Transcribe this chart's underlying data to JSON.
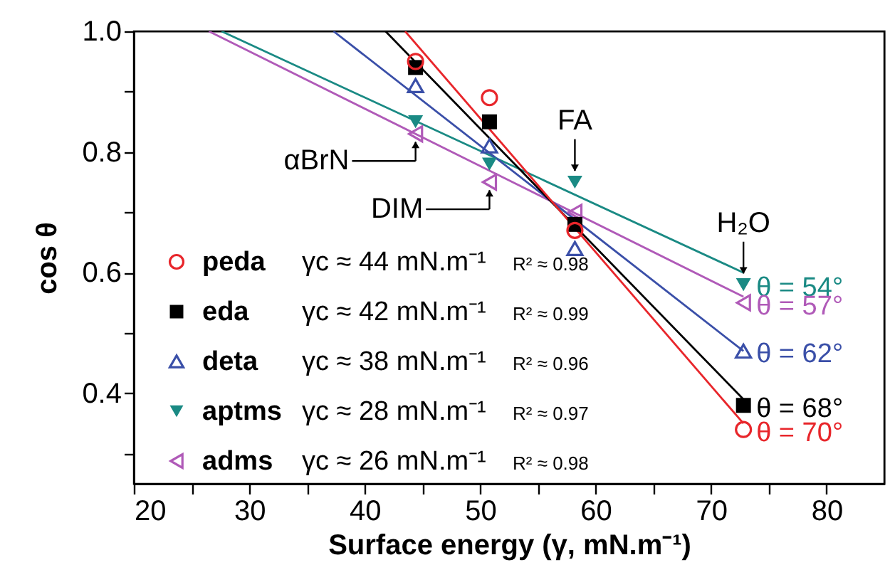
{
  "chart_data": {
    "type": "scatter",
    "xlabel": "Surface energy (γ, mN.m⁻¹)",
    "ylabel": "cos θ",
    "xlim": [
      20,
      85
    ],
    "ylim": [
      0.25,
      1.0
    ],
    "xticks": [
      20,
      {
        "value": 25,
        "label": null
      },
      30,
      {
        "value": 35,
        "label": null
      },
      40,
      {
        "value": 45,
        "label": null
      },
      50,
      {
        "value": 55,
        "label": null
      },
      60,
      {
        "value": 65,
        "label": null
      },
      70,
      {
        "value": 75,
        "label": null
      },
      80
    ],
    "yticks": [
      {
        "value": 0.3,
        "label": null
      },
      {
        "value": 0.4,
        "label": "0.4"
      },
      {
        "value": 0.5,
        "label": null
      },
      {
        "value": 0.6,
        "label": "0.6"
      },
      {
        "value": 0.7,
        "label": null
      },
      {
        "value": 0.8,
        "label": "0.8"
      },
      {
        "value": 0.9,
        "label": null
      },
      {
        "value": 1.0,
        "label": "1.0"
      }
    ],
    "grid": false,
    "legend": "bottom left",
    "annotations": [
      {
        "text": "αBrN",
        "x": 44.4,
        "y": 0.83
      },
      {
        "text": "DIM",
        "x": 50.8,
        "y": 0.75
      },
      {
        "text": "FA",
        "x": 58.2,
        "y": 0.75
      },
      {
        "text": "H₂O",
        "x": 72.8,
        "y": 0.58
      },
      {
        "text": "θ = 70°",
        "x": 72.8,
        "y": 0.34
      },
      {
        "text": "θ = 68°",
        "x": 72.8,
        "y": 0.38
      },
      {
        "text": "θ = 62°",
        "x": 72.8,
        "y": 0.47
      },
      {
        "text": "θ = 54°",
        "x": 72.8,
        "y": 0.58
      },
      {
        "text": "θ = 57°",
        "x": 72.8,
        "y": 0.55
      },
      "γc ≈ 44 mN.m⁻¹",
      "R² ≈ 0.98",
      "γc ≈ 42 mN.m⁻¹",
      "R² ≈ 0.99",
      "γc ≈ 38 mN.m⁻¹",
      "R² ≈ 0.96",
      "γc ≈ 28 mN.m⁻¹",
      "R² ≈ 0.97",
      "γc ≈ 26 mN.m⁻¹",
      "R² ≈ 0.98"
    ],
    "series": [
      {
        "name": "peda",
        "color": "#e8262b",
        "marker": "circle",
        "x": [
          44.4,
          50.8,
          58.2,
          72.8
        ],
        "values": [
          0.95,
          0.89,
          0.67,
          0.34
        ]
      },
      {
        "name": "eda",
        "color": "#000000",
        "marker": "square",
        "x": [
          44.4,
          50.8,
          58.2,
          72.8
        ],
        "values": [
          0.94,
          0.85,
          0.68,
          0.38
        ]
      },
      {
        "name": "deta",
        "color": "#3a4fa8",
        "marker": "triangle",
        "x": [
          44.4,
          50.8,
          58.2,
          72.8
        ],
        "values": [
          0.91,
          0.81,
          0.64,
          0.47
        ]
      },
      {
        "name": "aptms",
        "color": "#1a8a84",
        "marker": "triangle-down",
        "x": [
          44.4,
          50.8,
          58.2,
          72.8
        ],
        "values": [
          0.85,
          0.78,
          0.75,
          0.58
        ]
      },
      {
        "name": "adms",
        "color": "#b05ab8",
        "marker": "triangle-left",
        "x": [
          44.4,
          50.8,
          58.2,
          72.8
        ],
        "values": [
          0.83,
          0.75,
          0.7,
          0.55
        ]
      },
      {
        "type": "line",
        "color": "#e8262b",
        "marker": "none",
        "x": [
          43.5,
          72.8
        ],
        "values": [
          1.0,
          0.35
        ]
      },
      {
        "type": "line",
        "color": "#000000",
        "marker": "none",
        "x": [
          41.8,
          72.8
        ],
        "values": [
          1.0,
          0.39
        ]
      },
      {
        "type": "line",
        "color": "#3a4fa8",
        "marker": "none",
        "x": [
          37.3,
          72.8
        ],
        "values": [
          1.0,
          0.47
        ]
      },
      {
        "type": "line",
        "color": "#1a8a84",
        "marker": "none",
        "x": [
          27.6,
          72.8
        ],
        "values": [
          1.0,
          0.6
        ]
      },
      {
        "type": "line",
        "color": "#b05ab8",
        "marker": "none",
        "x": [
          26.5,
          72.8
        ],
        "values": [
          1.0,
          0.56
        ]
      }
    ]
  }
}
